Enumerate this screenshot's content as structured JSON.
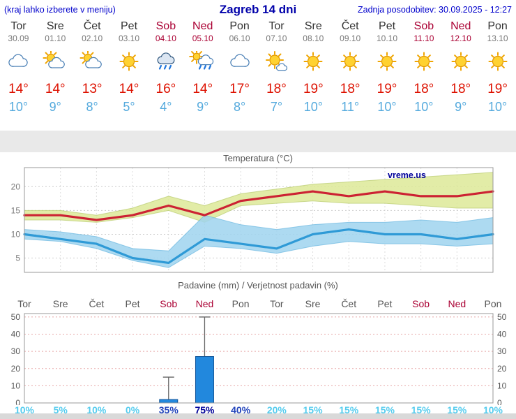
{
  "header": {
    "left_note": "(kraj lahko izberete v meniju)",
    "title": "Zagreb 14 dni",
    "updated": "Zadnja posodobitev: 30.09.2025 - 12:27"
  },
  "days": [
    {
      "name": "Tor",
      "date": "30.09",
      "weekend": false,
      "icon": "cloudy",
      "tmax": "14°",
      "tmin": "10°"
    },
    {
      "name": "Sre",
      "date": "01.10",
      "weekend": false,
      "icon": "partly-cloudy",
      "tmax": "14°",
      "tmin": "9°"
    },
    {
      "name": "Čet",
      "date": "02.10",
      "weekend": false,
      "icon": "partly-cloudy",
      "tmax": "13°",
      "tmin": "8°"
    },
    {
      "name": "Pet",
      "date": "03.10",
      "weekend": false,
      "icon": "sunny",
      "tmax": "14°",
      "tmin": "5°"
    },
    {
      "name": "Sob",
      "date": "04.10",
      "weekend": true,
      "icon": "rain",
      "tmax": "16°",
      "tmin": "4°"
    },
    {
      "name": "Ned",
      "date": "05.10",
      "weekend": true,
      "icon": "sun-shower",
      "tmax": "14°",
      "tmin": "9°"
    },
    {
      "name": "Pon",
      "date": "06.10",
      "weekend": false,
      "icon": "cloudy",
      "tmax": "17°",
      "tmin": "8°"
    },
    {
      "name": "Tor",
      "date": "07.10",
      "weekend": false,
      "icon": "mostly-sunny",
      "tmax": "18°",
      "tmin": "7°"
    },
    {
      "name": "Sre",
      "date": "08.10",
      "weekend": false,
      "icon": "sunny",
      "tmax": "19°",
      "tmin": "10°"
    },
    {
      "name": "Čet",
      "date": "09.10",
      "weekend": false,
      "icon": "sunny",
      "tmax": "18°",
      "tmin": "11°"
    },
    {
      "name": "Pet",
      "date": "10.10",
      "weekend": false,
      "icon": "sunny",
      "tmax": "19°",
      "tmin": "10°"
    },
    {
      "name": "Sob",
      "date": "11.10",
      "weekend": true,
      "icon": "sunny",
      "tmax": "18°",
      "tmin": "10°"
    },
    {
      "name": "Ned",
      "date": "12.10",
      "weekend": true,
      "icon": "sunny",
      "tmax": "18°",
      "tmin": "9°"
    },
    {
      "name": "Pon",
      "date": "13.10",
      "weekend": false,
      "icon": "sunny",
      "tmax": "19°",
      "tmin": "10°"
    }
  ],
  "chart_data": [
    {
      "type": "line",
      "title": "Temperatura (°C)",
      "watermark": "vreme.us",
      "x_labels": [
        "Tor",
        "Sre",
        "Čet",
        "Pet",
        "Sob",
        "Ned",
        "Pon",
        "Tor",
        "Sre",
        "Čet",
        "Pet",
        "Sob",
        "Ned",
        "Pon"
      ],
      "ylim": [
        2,
        24
      ],
      "yticks": [
        5,
        10,
        15,
        20
      ],
      "series": [
        {
          "name": "tmax",
          "color": "#cc2233",
          "values": [
            14,
            14,
            13,
            14,
            16,
            14,
            17,
            18,
            19,
            18,
            19,
            18,
            18,
            19
          ]
        },
        {
          "name": "tmin",
          "color": "#2f9ad6",
          "values": [
            10,
            9,
            8,
            5,
            4,
            9,
            8,
            7,
            10,
            11,
            10,
            10,
            9,
            10
          ]
        }
      ],
      "bands": [
        {
          "name": "tmax-range",
          "color": "#dde998",
          "edge": "#b8ca6e",
          "upper": [
            15,
            15,
            14,
            15.5,
            18,
            16,
            18.5,
            19.5,
            20.5,
            21,
            21.5,
            22,
            22.5,
            23
          ],
          "lower": [
            13,
            13,
            12.5,
            13.5,
            15,
            12.5,
            16,
            16.5,
            17,
            16.5,
            16.5,
            16,
            15.5,
            15.5
          ]
        },
        {
          "name": "tmin-range",
          "color": "#9fd3ee",
          "edge": "#6ab6e0",
          "upper": [
            11,
            10.5,
            9.5,
            7,
            6.5,
            14,
            12,
            11,
            12,
            12.5,
            12.5,
            13,
            12.5,
            13.5
          ],
          "lower": [
            9,
            8.5,
            7,
            4.5,
            3,
            7.5,
            7,
            6,
            7.5,
            8.5,
            8,
            8,
            7.5,
            8
          ]
        }
      ]
    },
    {
      "type": "bar",
      "title": "Padavine (mm) / Verjetnost padavin (%)",
      "x_labels": [
        "Tor",
        "Sre",
        "Čet",
        "Pet",
        "Sob",
        "Ned",
        "Pon",
        "Tor",
        "Sre",
        "Čet",
        "Pet",
        "Sob",
        "Ned",
        "Pon"
      ],
      "ylim": [
        0,
        52
      ],
      "yticks": [
        0,
        10,
        20,
        30,
        40,
        50
      ],
      "values_mm": [
        0,
        0,
        0,
        0,
        2,
        27,
        0,
        0,
        0,
        0,
        0,
        0,
        0,
        0
      ],
      "max_mm": [
        0,
        0,
        0,
        0,
        15,
        50,
        0,
        0,
        0,
        0,
        0,
        0,
        0,
        0
      ],
      "probability_pct": [
        "10%",
        "5%",
        "10%",
        "0%",
        "35%",
        "75%",
        "40%",
        "20%",
        "15%",
        "15%",
        "15%",
        "15%",
        "15%",
        "10%"
      ]
    }
  ],
  "colors": {
    "header_text": "#0000cc",
    "title_text": "#0000aa",
    "weekend": "#aa0033",
    "tmax": "#dd1100",
    "tmin": "#55aadd",
    "grid_temp": "#cccccc",
    "grid_precip": "#e8a8a8",
    "chart_border": "#999999",
    "bar_fill": "#2288dd",
    "bar_border": "#115599",
    "whisker": "#666666",
    "watermark": "#000099",
    "prob_low": "#55ccee",
    "prob_mid": "#2244bb",
    "prob_high": "#000099"
  }
}
